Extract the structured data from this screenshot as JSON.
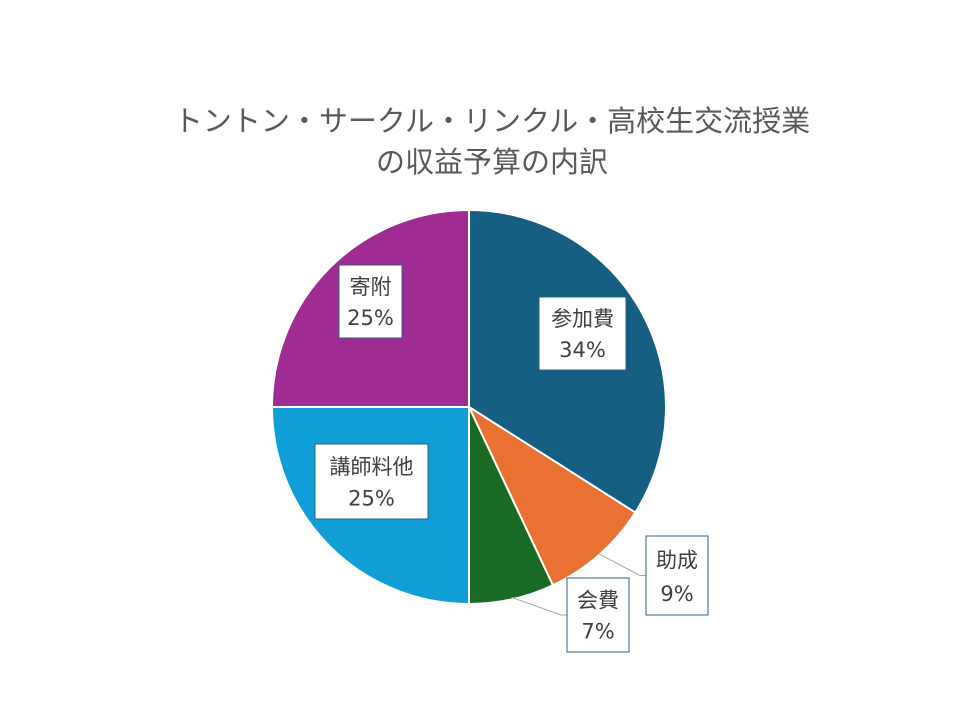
{
  "chart_data": {
    "type": "pie",
    "title_lines": [
      "トントン・サークル・リンクル・高校生交流授業",
      "の収益予算の内訳"
    ],
    "slices": [
      {
        "label": "参加費",
        "value": 34,
        "value_label": "34%",
        "color": "#155f82"
      },
      {
        "label": "助成",
        "value": 9,
        "value_label": "9%",
        "color": "#e97132"
      },
      {
        "label": "会費",
        "value": 7,
        "value_label": "7%",
        "color": "#196b24"
      },
      {
        "label": "講師料他",
        "value": 25,
        "value_label": "25%",
        "color": "#0f9ed5"
      },
      {
        "label": "寄附",
        "value": 25,
        "value_label": "25%",
        "color": "#a02b93"
      }
    ],
    "start_angle_degrees": 0,
    "direction": "clockwise",
    "legend": "none",
    "data_labels": "category-and-percent"
  }
}
